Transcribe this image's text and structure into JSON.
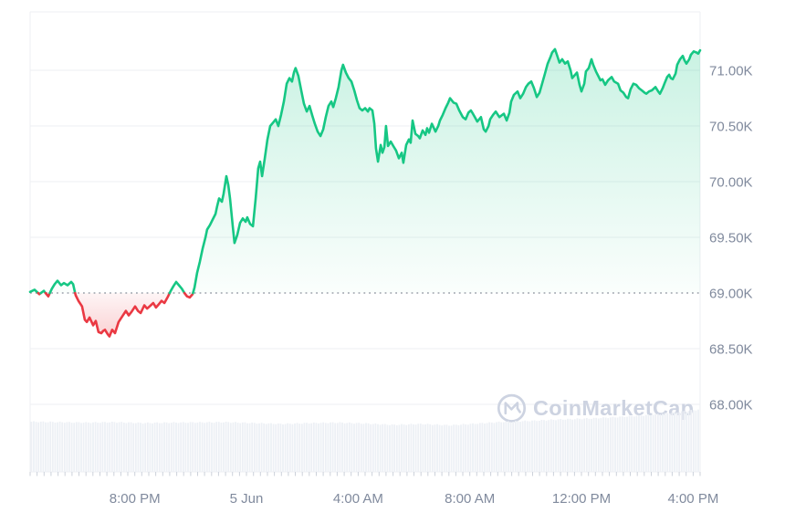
{
  "watermark": {
    "text": "CoinMarketCap"
  },
  "chart_data": {
    "type": "area",
    "title": "",
    "grid": "horizontal",
    "legend": "none",
    "baseline_price_k": 69.0,
    "y_axis": {
      "unit": "K",
      "tick_labels": [
        "71.00K",
        "70.50K",
        "70.00K",
        "69.50K",
        "69.00K",
        "68.50K",
        "68.00K"
      ],
      "tick_values_k": [
        71.0,
        70.5,
        70.0,
        69.5,
        69.0,
        68.5,
        68.0
      ],
      "ylim_k": [
        66.9,
        71.53
      ]
    },
    "x_axis": {
      "duration_hours": 24,
      "ticks": [
        {
          "label": "8:00 PM",
          "h": 3.75
        },
        {
          "label": "5 Jun",
          "h": 7.75
        },
        {
          "label": "4:00 AM",
          "h": 11.75
        },
        {
          "label": "8:00 AM",
          "h": 15.75
        },
        {
          "label": "12:00 PM",
          "h": 19.75
        },
        {
          "label": "4:00 PM",
          "h": 23.75
        }
      ],
      "minor_tick_count": 96
    },
    "series": {
      "name": "price",
      "points_h_priceK": [
        [
          0,
          69.01
        ],
        [
          0.16,
          69.03
        ],
        [
          0.33,
          68.99
        ],
        [
          0.49,
          69.02
        ],
        [
          0.65,
          68.97
        ],
        [
          0.78,
          69.04
        ],
        [
          0.88,
          69.08
        ],
        [
          0.98,
          69.11
        ],
        [
          1.11,
          69.07
        ],
        [
          1.21,
          69.09
        ],
        [
          1.34,
          69.07
        ],
        [
          1.47,
          69.1
        ],
        [
          1.54,
          69.08
        ],
        [
          1.63,
          68.98
        ],
        [
          1.73,
          68.93
        ],
        [
          1.86,
          68.88
        ],
        [
          1.96,
          68.76
        ],
        [
          2.03,
          68.74
        ],
        [
          2.13,
          68.78
        ],
        [
          2.26,
          68.71
        ],
        [
          2.35,
          68.75
        ],
        [
          2.45,
          68.65
        ],
        [
          2.55,
          68.64
        ],
        [
          2.62,
          68.66
        ],
        [
          2.68,
          68.67
        ],
        [
          2.78,
          68.63
        ],
        [
          2.84,
          68.61
        ],
        [
          2.94,
          68.67
        ],
        [
          3.04,
          68.64
        ],
        [
          3.17,
          68.74
        ],
        [
          3.3,
          68.79
        ],
        [
          3.43,
          68.84
        ],
        [
          3.53,
          68.8
        ],
        [
          3.63,
          68.83
        ],
        [
          3.76,
          68.88
        ],
        [
          3.86,
          68.84
        ],
        [
          3.96,
          68.82
        ],
        [
          4.09,
          68.89
        ],
        [
          4.19,
          68.86
        ],
        [
          4.28,
          68.88
        ],
        [
          4.41,
          68.91
        ],
        [
          4.51,
          68.87
        ],
        [
          4.61,
          68.9
        ],
        [
          4.71,
          68.93
        ],
        [
          4.81,
          68.91
        ],
        [
          4.94,
          68.97
        ],
        [
          5.04,
          69.02
        ],
        [
          5.13,
          69.06
        ],
        [
          5.23,
          69.1
        ],
        [
          5.33,
          69.07
        ],
        [
          5.43,
          69.04
        ],
        [
          5.53,
          69.0
        ],
        [
          5.62,
          68.97
        ],
        [
          5.72,
          68.96
        ],
        [
          5.82,
          68.99
        ],
        [
          5.89,
          69.05
        ],
        [
          5.98,
          69.18
        ],
        [
          6.08,
          69.28
        ],
        [
          6.18,
          69.4
        ],
        [
          6.28,
          69.5
        ],
        [
          6.34,
          69.57
        ],
        [
          6.44,
          69.61
        ],
        [
          6.54,
          69.66
        ],
        [
          6.64,
          69.71
        ],
        [
          6.7,
          69.78
        ],
        [
          6.77,
          69.85
        ],
        [
          6.87,
          69.82
        ],
        [
          6.93,
          69.89
        ],
        [
          7.03,
          70.05
        ],
        [
          7.1,
          69.97
        ],
        [
          7.16,
          69.85
        ],
        [
          7.26,
          69.6
        ],
        [
          7.32,
          69.45
        ],
        [
          7.42,
          69.52
        ],
        [
          7.52,
          69.63
        ],
        [
          7.62,
          69.67
        ],
        [
          7.72,
          69.64
        ],
        [
          7.78,
          69.68
        ],
        [
          7.88,
          69.62
        ],
        [
          7.98,
          69.6
        ],
        [
          8.08,
          69.85
        ],
        [
          8.17,
          70.12
        ],
        [
          8.24,
          70.18
        ],
        [
          8.31,
          70.05
        ],
        [
          8.4,
          70.2
        ],
        [
          8.5,
          70.38
        ],
        [
          8.6,
          70.5
        ],
        [
          8.7,
          70.53
        ],
        [
          8.8,
          70.56
        ],
        [
          8.89,
          70.5
        ],
        [
          8.99,
          70.6
        ],
        [
          9.09,
          70.72
        ],
        [
          9.19,
          70.88
        ],
        [
          9.29,
          70.93
        ],
        [
          9.38,
          70.9
        ],
        [
          9.45,
          70.98
        ],
        [
          9.51,
          71.02
        ],
        [
          9.61,
          70.95
        ],
        [
          9.71,
          70.82
        ],
        [
          9.81,
          70.7
        ],
        [
          9.91,
          70.63
        ],
        [
          10.01,
          70.68
        ],
        [
          10.1,
          70.6
        ],
        [
          10.2,
          70.52
        ],
        [
          10.3,
          70.45
        ],
        [
          10.4,
          70.41
        ],
        [
          10.5,
          70.47
        ],
        [
          10.59,
          70.58
        ],
        [
          10.69,
          70.68
        ],
        [
          10.79,
          70.72
        ],
        [
          10.86,
          70.67
        ],
        [
          10.95,
          70.75
        ],
        [
          11.05,
          70.85
        ],
        [
          11.15,
          71.0
        ],
        [
          11.21,
          71.05
        ],
        [
          11.31,
          70.98
        ],
        [
          11.41,
          70.93
        ],
        [
          11.51,
          70.9
        ],
        [
          11.61,
          70.82
        ],
        [
          11.71,
          70.73
        ],
        [
          11.8,
          70.66
        ],
        [
          11.9,
          70.64
        ],
        [
          12,
          70.66
        ],
        [
          12.1,
          70.63
        ],
        [
          12.16,
          70.66
        ],
        [
          12.26,
          70.64
        ],
        [
          12.33,
          70.52
        ],
        [
          12.39,
          70.3
        ],
        [
          12.46,
          70.18
        ],
        [
          12.56,
          70.33
        ],
        [
          12.62,
          70.26
        ],
        [
          12.69,
          70.31
        ],
        [
          12.75,
          70.5
        ],
        [
          12.82,
          70.32
        ],
        [
          12.92,
          70.36
        ],
        [
          13.01,
          70.32
        ],
        [
          13.11,
          70.28
        ],
        [
          13.21,
          70.21
        ],
        [
          13.31,
          70.26
        ],
        [
          13.37,
          70.17
        ],
        [
          13.47,
          70.33
        ],
        [
          13.57,
          70.38
        ],
        [
          13.63,
          70.35
        ],
        [
          13.7,
          70.55
        ],
        [
          13.8,
          70.43
        ],
        [
          13.9,
          70.41
        ],
        [
          13.96,
          70.39
        ],
        [
          14.06,
          70.46
        ],
        [
          14.16,
          70.42
        ],
        [
          14.22,
          70.48
        ],
        [
          14.29,
          70.44
        ],
        [
          14.39,
          70.52
        ],
        [
          14.52,
          70.45
        ],
        [
          14.62,
          70.5
        ],
        [
          14.68,
          70.55
        ],
        [
          14.78,
          70.6
        ],
        [
          14.88,
          70.66
        ],
        [
          14.98,
          70.71
        ],
        [
          15.04,
          70.75
        ],
        [
          15.17,
          70.71
        ],
        [
          15.27,
          70.7
        ],
        [
          15.37,
          70.64
        ],
        [
          15.5,
          70.58
        ],
        [
          15.6,
          70.56
        ],
        [
          15.7,
          70.62
        ],
        [
          15.79,
          70.64
        ],
        [
          15.86,
          70.61
        ],
        [
          15.93,
          70.58
        ],
        [
          16.02,
          70.54
        ],
        [
          16.15,
          70.58
        ],
        [
          16.25,
          70.47
        ],
        [
          16.32,
          70.45
        ],
        [
          16.42,
          70.5
        ],
        [
          16.48,
          70.56
        ],
        [
          16.58,
          70.6
        ],
        [
          16.68,
          70.63
        ],
        [
          16.81,
          70.58
        ],
        [
          16.91,
          70.6
        ],
        [
          16.97,
          70.61
        ],
        [
          17.07,
          70.55
        ],
        [
          17.17,
          70.62
        ],
        [
          17.23,
          70.72
        ],
        [
          17.33,
          70.78
        ],
        [
          17.46,
          70.81
        ],
        [
          17.56,
          70.75
        ],
        [
          17.66,
          70.79
        ],
        [
          17.76,
          70.85
        ],
        [
          17.85,
          70.88
        ],
        [
          17.95,
          70.9
        ],
        [
          18.05,
          70.84
        ],
        [
          18.15,
          70.76
        ],
        [
          18.25,
          70.8
        ],
        [
          18.34,
          70.88
        ],
        [
          18.44,
          70.97
        ],
        [
          18.54,
          71.06
        ],
        [
          18.64,
          71.12
        ],
        [
          18.7,
          71.16
        ],
        [
          18.8,
          71.19
        ],
        [
          18.87,
          71.14
        ],
        [
          18.96,
          71.07
        ],
        [
          19.06,
          71.1
        ],
        [
          19.16,
          71.06
        ],
        [
          19.26,
          71.08
        ],
        [
          19.36,
          71.0
        ],
        [
          19.42,
          70.93
        ],
        [
          19.52,
          70.96
        ],
        [
          19.59,
          70.98
        ],
        [
          19.68,
          70.87
        ],
        [
          19.75,
          70.81
        ],
        [
          19.85,
          70.88
        ],
        [
          19.91,
          70.99
        ],
        [
          20.01,
          71.02
        ],
        [
          20.11,
          71.1
        ],
        [
          20.17,
          71.05
        ],
        [
          20.27,
          70.99
        ],
        [
          20.37,
          70.94
        ],
        [
          20.43,
          70.91
        ],
        [
          20.5,
          70.92
        ],
        [
          20.6,
          70.87
        ],
        [
          20.7,
          70.91
        ],
        [
          20.83,
          70.94
        ],
        [
          20.92,
          70.9
        ],
        [
          21.06,
          70.88
        ],
        [
          21.15,
          70.82
        ],
        [
          21.25,
          70.8
        ],
        [
          21.35,
          70.76
        ],
        [
          21.42,
          70.75
        ],
        [
          21.51,
          70.83
        ],
        [
          21.61,
          70.88
        ],
        [
          21.71,
          70.87
        ],
        [
          21.81,
          70.84
        ],
        [
          21.91,
          70.82
        ],
        [
          22.01,
          70.8
        ],
        [
          22.07,
          70.79
        ],
        [
          22.17,
          70.81
        ],
        [
          22.27,
          70.82
        ],
        [
          22.4,
          70.85
        ],
        [
          22.5,
          70.81
        ],
        [
          22.56,
          70.79
        ],
        [
          22.66,
          70.84
        ],
        [
          22.72,
          70.88
        ],
        [
          22.82,
          70.94
        ],
        [
          22.89,
          70.96
        ],
        [
          22.95,
          70.93
        ],
        [
          23.02,
          70.92
        ],
        [
          23.12,
          70.97
        ],
        [
          23.18,
          71.05
        ],
        [
          23.28,
          71.1
        ],
        [
          23.38,
          71.13
        ],
        [
          23.44,
          71.09
        ],
        [
          23.51,
          71.06
        ],
        [
          23.61,
          71.1
        ],
        [
          23.67,
          71.14
        ],
        [
          23.77,
          71.17
        ],
        [
          23.87,
          71.16
        ],
        [
          23.93,
          71.15
        ],
        [
          24,
          71.18
        ]
      ]
    },
    "volume_profile_h_heightPx": [
      [
        0,
        55
      ],
      [
        1,
        54.5
      ],
      [
        2,
        54
      ],
      [
        3,
        54.5
      ],
      [
        4,
        53.5
      ],
      [
        5,
        54
      ],
      [
        6,
        54.2
      ],
      [
        7,
        54.5
      ],
      [
        8,
        53.5
      ],
      [
        9,
        52.5
      ],
      [
        10,
        53.5
      ],
      [
        11,
        54
      ],
      [
        12,
        53
      ],
      [
        13,
        51.5
      ],
      [
        14,
        52.5
      ],
      [
        15,
        51
      ],
      [
        16,
        53
      ],
      [
        17,
        55
      ],
      [
        18,
        56
      ],
      [
        19,
        57.5
      ],
      [
        20,
        58.5
      ],
      [
        21,
        60
      ],
      [
        22,
        62
      ],
      [
        23,
        65
      ],
      [
        24,
        68.5
      ]
    ],
    "colors": {
      "up": "#16c784",
      "down": "#ea3943",
      "grid": "#edeff3",
      "axis_label": "#808a9d",
      "baseline_dots": "#9aa0aa",
      "volume": "#edf0f5",
      "tick": "#ccd1da",
      "watermark": "#cdd3e1"
    }
  }
}
